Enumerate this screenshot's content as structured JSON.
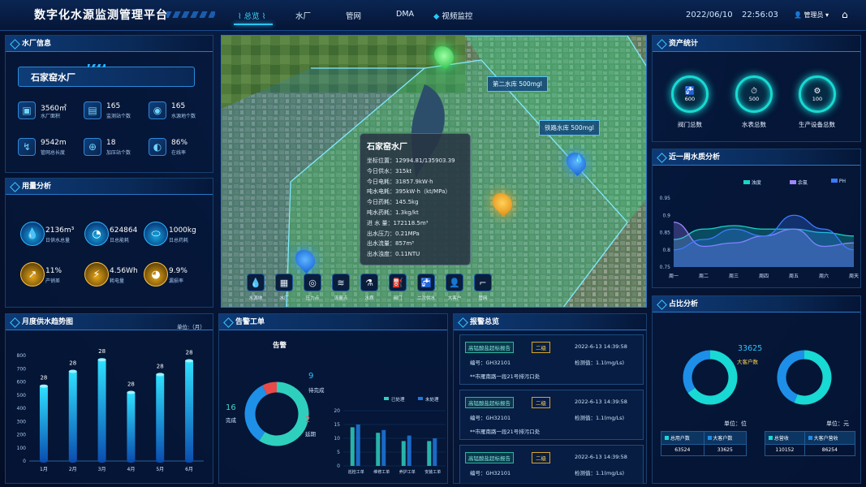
{
  "header": {
    "title": "数字化水源监测管理平台",
    "nav": [
      "总览",
      "水厂",
      "管网",
      "DMA",
      "视频监控"
    ],
    "date": "2022/06/10",
    "time": "22:56:03",
    "user": "管理员"
  },
  "plant_info": {
    "title": "水厂信息",
    "name": "石家窑水厂",
    "stats": [
      {
        "value": "3560㎡",
        "label": "水厂面积"
      },
      {
        "value": "165",
        "label": "监测站个数"
      },
      {
        "value": "165",
        "label": "水源地个数"
      },
      {
        "value": "9542m",
        "label": "管网总长度"
      },
      {
        "value": "18",
        "label": "加压站个数"
      },
      {
        "value": "86%",
        "label": "在线率"
      }
    ]
  },
  "usage": {
    "title": "用量分析",
    "items": [
      {
        "value": "2136m³",
        "label": "日供水总量"
      },
      {
        "value": "624864",
        "label": "日总能耗"
      },
      {
        "value": "1000kg",
        "label": "日总药耗"
      },
      {
        "value": "11%",
        "label": "产销差"
      },
      {
        "value": "4.56Wh",
        "label": "耗电量"
      },
      {
        "value": "9.9%",
        "label": "漏损率"
      }
    ]
  },
  "monthly": {
    "title": "月度供水趋势图",
    "unit": "单位:（月）"
  },
  "map": {
    "labels": [
      "第二水库  500mgl",
      "铁路水库  500mgl"
    ],
    "popup": {
      "title": "石家窑水厂",
      "rows": [
        "坐标位置：12994.81/135903.39",
        "今日供水：315kt",
        "今日电耗：31857.9kW·h",
        "吨水电耗：395kW·h（kt/MPa）",
        "今日药耗：145.5kg",
        "吨水药耗：1.3kg/kt",
        "进  水 量：172118.5m³",
        "出水压力：0.21MPa",
        "出水流量：857m³",
        "出水浊度：0.11NTU"
      ]
    },
    "tools": [
      "水源地",
      "水厂",
      "压力点",
      "流量点",
      "水质",
      "阀门",
      "二次供水",
      "大客户",
      "管网"
    ]
  },
  "workorders": {
    "title": "告警工单",
    "subtitle": "告警",
    "done": "16",
    "done_label": "完成",
    "pending": "9",
    "pending_label": "待完成",
    "delay": "2",
    "delay_label": "延期",
    "legend": [
      "已处理",
      "未处理"
    ]
  },
  "alarms": {
    "title": "报警总览",
    "items": [
      {
        "name": "高锰酸盐超标报告",
        "level": "二级",
        "time": "2022-6-13 14:39:58",
        "code": "编号：GH32101",
        "value": "检测值：1.1(mg/Ls)",
        "place": "**市雁南路一段21号排污口处"
      },
      {
        "name": "高锰酸盐超标报告",
        "level": "二级",
        "time": "2022-6-13 14:39:58",
        "code": "编号：GH32101",
        "value": "检测值：1.1(mg/Ls)",
        "place": "**市雁南路一段21号排污口处"
      },
      {
        "name": "高锰酸盐超标报告",
        "level": "二级",
        "time": "2022-6-13 14:39:58",
        "code": "编号：GH32101",
        "value": "检测值：1.1(mg/Ls)"
      }
    ]
  },
  "assets": {
    "title": "资产统计",
    "items": [
      {
        "value": "600",
        "label": "阀门总数"
      },
      {
        "value": "500",
        "label": "水表总数"
      },
      {
        "value": "100",
        "label": "生产设备总数"
      }
    ]
  },
  "quality": {
    "title": "近一周水质分析",
    "legend": [
      "浊度",
      "余氯",
      "PH"
    ]
  },
  "ratio": {
    "title": "占比分析",
    "highlight": "33625",
    "highlight_label": "大客户数",
    "unit1": "单位：位",
    "unit2": "单位：元",
    "table1": {
      "headers": [
        "总用户数",
        "大客户数"
      ],
      "values": [
        "63524",
        "33625"
      ]
    },
    "table2": {
      "headers": [
        "总营收",
        "大客户营收"
      ],
      "values": [
        "110152",
        "86254"
      ]
    }
  },
  "colors": {
    "accent": "#29c6ff",
    "teal": "#18d9d3",
    "yellow": "#f4b728",
    "red": "#e84a4a"
  },
  "chart_data": [
    {
      "type": "bar",
      "title": "月度供水趋势图",
      "categories": [
        "1月",
        "2月",
        "3月",
        "4月",
        "5月",
        "6月"
      ],
      "values": [
        28,
        28,
        28,
        28,
        28,
        28
      ],
      "ylim": [
        0,
        800
      ],
      "yticks": [
        0,
        100,
        200,
        300,
        400,
        500,
        600,
        700,
        800
      ]
    },
    {
      "type": "bar",
      "categories": [
        "巡检工单",
        "维修工单",
        "养护工单",
        "安装工单"
      ],
      "series": [
        {
          "name": "已处理",
          "values": [
            14,
            12,
            9,
            9
          ]
        },
        {
          "name": "未处理",
          "values": [
            15,
            13,
            11,
            10
          ]
        }
      ],
      "ylim": [
        0,
        20
      ],
      "yticks": [
        0,
        5,
        10,
        15,
        20
      ]
    },
    {
      "type": "area",
      "title": "近一周水质分析",
      "categories": [
        "周一",
        "周二",
        "周三",
        "周四",
        "周五",
        "周六",
        "周天"
      ],
      "series": [
        {
          "name": "浊度",
          "values": [
            0.83,
            0.86,
            0.87,
            0.86,
            0.86,
            0.85,
            0.84
          ]
        },
        {
          "name": "余氯",
          "values": [
            0.88,
            0.81,
            0.82,
            0.84,
            0.86,
            0.81,
            0.82
          ]
        },
        {
          "name": "PH",
          "values": [
            0.8,
            0.83,
            0.86,
            0.84,
            0.9,
            0.86,
            0.8
          ]
        }
      ],
      "ylim": [
        0.75,
        0.95
      ],
      "yticks": [
        0.75,
        0.8,
        0.85,
        0.9,
        0.95
      ]
    },
    {
      "type": "pie",
      "series": [
        {
          "name": "工单",
          "values": [
            16,
            9,
            2
          ]
        }
      ]
    },
    {
      "type": "pie",
      "values": [
        63524,
        33625
      ]
    },
    {
      "type": "pie",
      "values": [
        110152,
        86254
      ]
    }
  ]
}
